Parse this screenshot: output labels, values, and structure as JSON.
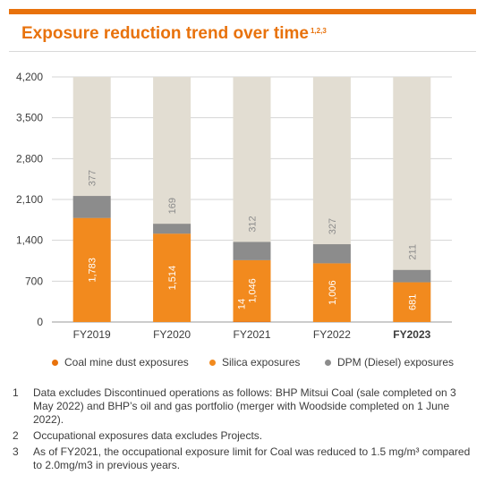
{
  "title": "Exposure reduction trend over time",
  "title_superscript": "1,2,3",
  "colors": {
    "accent": "#e8720c",
    "coal": "#e8720c",
    "silica": "#f28a1e",
    "dpm": "#8c8c8c",
    "background_bar": "#e2ddd2"
  },
  "chart_data": {
    "type": "bar",
    "stacked": true,
    "categories": [
      "FY2019",
      "FY2020",
      "FY2021",
      "FY2022",
      "FY2023"
    ],
    "bold_category": "FY2023",
    "series": [
      {
        "name": "Coal mine dust exposures",
        "values": [
          null,
          null,
          14,
          null,
          null
        ]
      },
      {
        "name": "Silica exposures",
        "values": [
          1783,
          1514,
          1046,
          1006,
          681
        ]
      },
      {
        "name": "DPM (Diesel) exposures",
        "values": [
          377,
          169,
          312,
          327,
          211
        ]
      }
    ],
    "ylim": [
      0,
      4200
    ],
    "yticks": [
      "0",
      "700",
      "1,400",
      "2,100",
      "2,800",
      "3,500",
      "4,200"
    ],
    "xlabel": "",
    "ylabel": "",
    "grid": true,
    "legend_position": "bottom"
  },
  "legend": [
    {
      "label": "Coal mine dust exposures",
      "color": "#e8720c"
    },
    {
      "label": "Silica exposures",
      "color": "#f28a1e"
    },
    {
      "label": "DPM (Diesel) exposures",
      "color": "#8c8c8c"
    }
  ],
  "footnotes": [
    {
      "num": "1",
      "text": "Data excludes Discontinued operations as follows: BHP Mitsui Coal (sale completed on 3 May 2022) and BHP’s oil and gas portfolio (merger with Woodside completed on 1 June 2022)."
    },
    {
      "num": "2",
      "text": "Occupational exposures data excludes Projects."
    },
    {
      "num": "3",
      "text": "As of FY2021, the occupational exposure limit for Coal was reduced to 1.5 mg/m³ compared to 2.0mg/m3 in previous years."
    }
  ]
}
